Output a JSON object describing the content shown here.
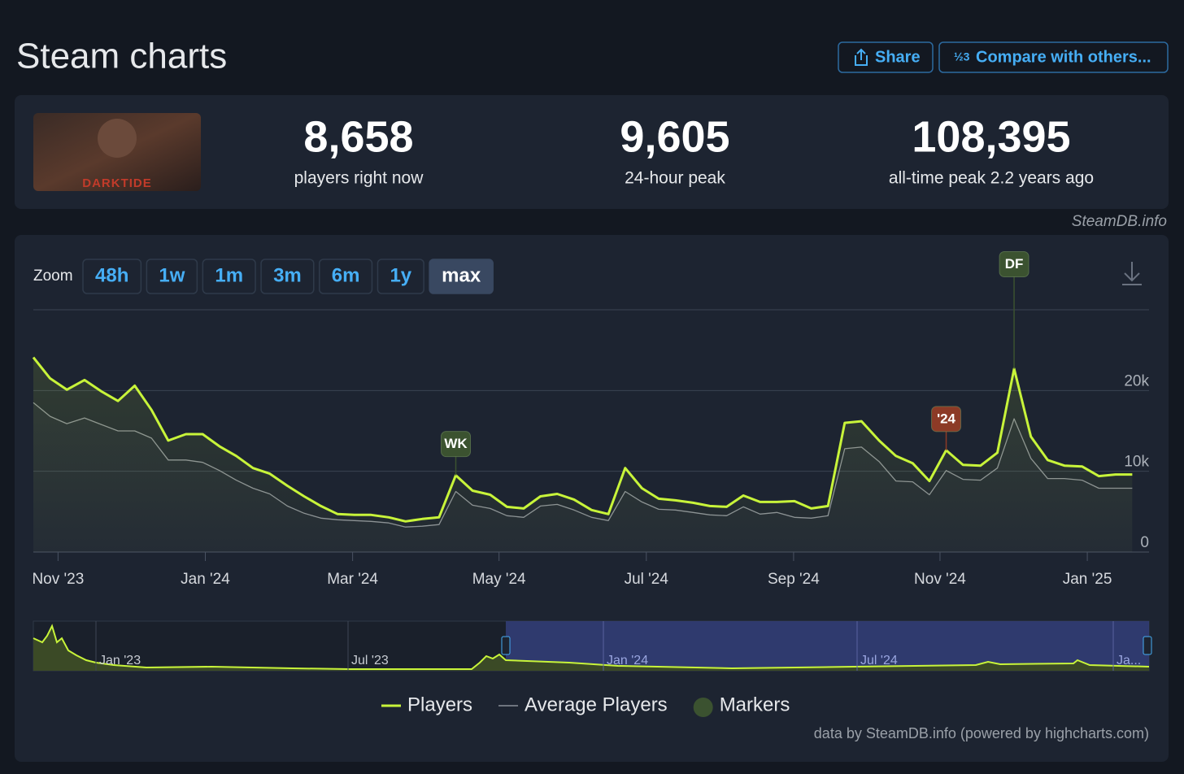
{
  "header": {
    "title": "Steam charts",
    "buttons": [
      "Share",
      "Compare with others..."
    ]
  },
  "banner": "DARKTIDE",
  "stats": [
    {
      "value": "8,658",
      "label": "players right now"
    },
    {
      "value": "9,605",
      "label": "24-hour peak"
    },
    {
      "value": "108,395",
      "label": "all-time peak 2.2 years ago"
    }
  ],
  "watermark": "SteamDB.info",
  "zoom": {
    "label": "Zoom",
    "options": [
      "48h",
      "1w",
      "1m",
      "3m",
      "6m",
      "1y",
      "max"
    ],
    "active": 6
  },
  "chart_data": {
    "type": "line",
    "x": [
      2023.805,
      2023.824,
      2023.843,
      2023.863,
      2023.882,
      2023.901,
      2023.92,
      2023.939,
      2023.958,
      2023.978,
      2023.997,
      2024.016,
      2024.035,
      2024.054,
      2024.073,
      2024.093,
      2024.112,
      2024.131,
      2024.15,
      2024.169,
      2024.188,
      2024.208,
      2024.227,
      2024.246,
      2024.265,
      2024.284,
      2024.303,
      2024.323,
      2024.342,
      2024.361,
      2024.38,
      2024.399,
      2024.418,
      2024.438,
      2024.457,
      2024.476,
      2024.495,
      2024.514,
      2024.533,
      2024.553,
      2024.572,
      2024.591,
      2024.61,
      2024.629,
      2024.648,
      2024.668,
      2024.687,
      2024.706,
      2024.725,
      2024.744,
      2024.764,
      2024.783,
      2024.802,
      2024.821,
      2024.84,
      2024.859,
      2024.879,
      2024.898,
      2024.917,
      2024.936,
      2024.955,
      2024.974,
      2024.994,
      2025.013,
      2025.032,
      2025.051
    ],
    "series": [
      {
        "name": "Players",
        "color": "#c8f43a",
        "values": [
          24100,
          21500,
          20100,
          21300,
          19900,
          18700,
          20600,
          17600,
          13800,
          14600,
          14600,
          13100,
          11900,
          10400,
          9700,
          8200,
          6900,
          5700,
          4700,
          4600,
          4600,
          4300,
          3800,
          4100,
          4300,
          9500,
          7600,
          7100,
          5600,
          5400,
          6900,
          7200,
          6500,
          5200,
          4700,
          10400,
          7900,
          6600,
          6400,
          6100,
          5700,
          5600,
          7000,
          6200,
          6200,
          6300,
          5400,
          5700,
          16000,
          16200,
          13800,
          11900,
          11000,
          8800,
          12600,
          10800,
          10700,
          12300,
          22700,
          14300,
          11400,
          10700,
          10600,
          9400,
          9600,
          9600
        ]
      },
      {
        "name": "Average Players",
        "color": "#8a8f98",
        "values": [
          18500,
          16800,
          15900,
          16600,
          15800,
          15000,
          15000,
          14100,
          11400,
          11400,
          11100,
          10100,
          8900,
          7900,
          7200,
          5700,
          4800,
          4200,
          4000,
          3900,
          3800,
          3600,
          3100,
          3200,
          3400,
          7500,
          5800,
          5400,
          4500,
          4300,
          5700,
          5900,
          5200,
          4300,
          3900,
          7500,
          6200,
          5300,
          5200,
          4900,
          4600,
          4500,
          5600,
          4700,
          4900,
          4300,
          4200,
          4500,
          12800,
          13000,
          11200,
          8800,
          8700,
          7100,
          10100,
          9000,
          8900,
          10400,
          16500,
          11600,
          9100,
          9100,
          8900,
          7900,
          7900,
          7900
        ]
      }
    ],
    "markers": [
      {
        "label": "WK",
        "x": 2024.284,
        "color": "#3b5230"
      },
      {
        "label": "'24",
        "x": 2024.84,
        "color": "#8c3a26"
      },
      {
        "label": "DF",
        "x": 2024.917,
        "color": "#3b5230"
      }
    ],
    "markers_legend": "Markers",
    "xlim": [
      2023.805,
      2025.07
    ],
    "xticks": [
      {
        "value": 2023.833,
        "label": "Nov '23"
      },
      {
        "value": 2024.0,
        "label": "Jan '24"
      },
      {
        "value": 2024.167,
        "label": "Mar '24"
      },
      {
        "value": 2024.333,
        "label": "May '24"
      },
      {
        "value": 2024.5,
        "label": "Jul '24"
      },
      {
        "value": 2024.667,
        "label": "Sep '24"
      },
      {
        "value": 2024.833,
        "label": "Nov '24"
      },
      {
        "value": 2025.0,
        "label": "Jan '25"
      }
    ],
    "ylim": [
      0,
      30000
    ],
    "yticks": [
      0,
      {
        "value": 10000,
        "label": "10k"
      },
      {
        "value": 20000,
        "label": "20k"
      }
    ],
    "grid": true
  },
  "navigator": {
    "labels": [
      "Jan '23",
      "Jul '23",
      "Jan '24",
      "Jul '24",
      "Ja..."
    ]
  },
  "credits": "data by SteamDB.info (powered by highcharts.com)"
}
